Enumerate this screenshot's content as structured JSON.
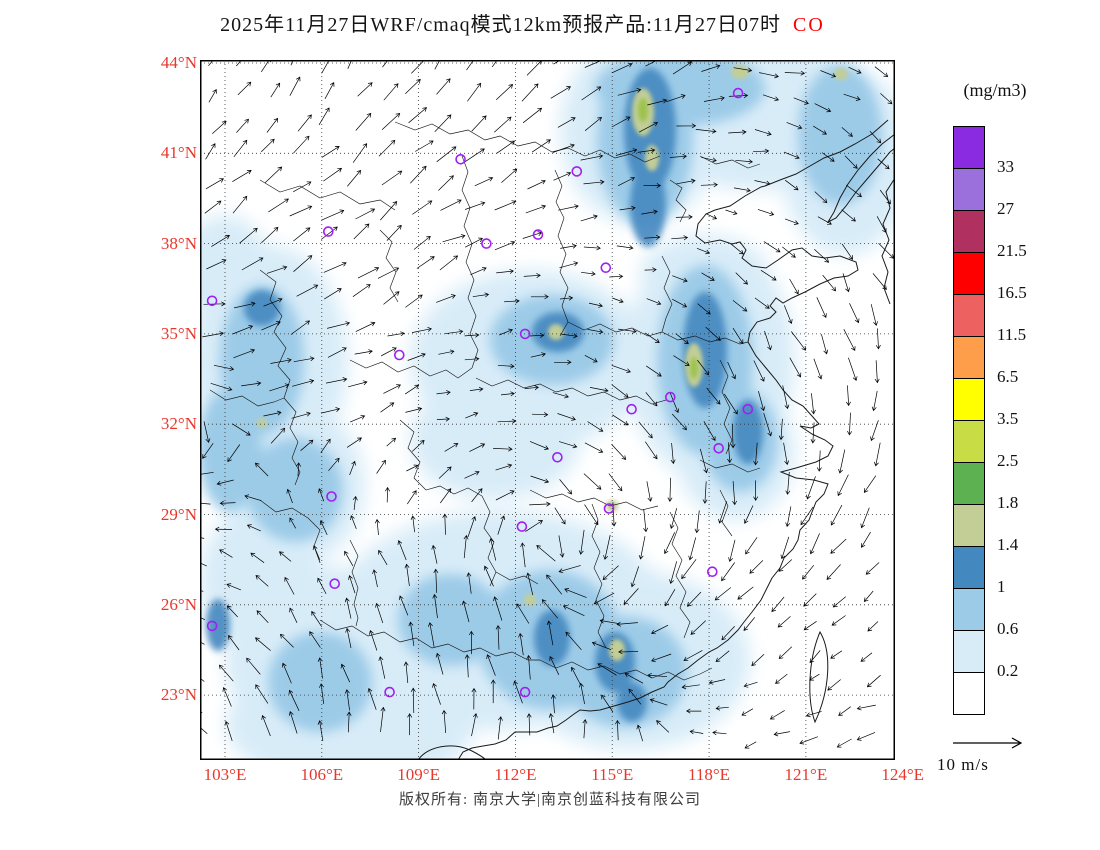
{
  "title": {
    "main": "2025年11月27日WRF/cmaq模式12km预报产品:11月27日07时",
    "species": "CO"
  },
  "footer": "版权所有: 南京大学|南京创蓝科技有限公司",
  "colors": {
    "axis_labels": "#e8382c",
    "species_label": "#ff0000",
    "station_marker": "#a020f0",
    "coastline": "#1a1a1a"
  },
  "map": {
    "lat_ticks": [
      {
        "label": "44°N",
        "deg": 44
      },
      {
        "label": "41°N",
        "deg": 41
      },
      {
        "label": "38°N",
        "deg": 38
      },
      {
        "label": "35°N",
        "deg": 35
      },
      {
        "label": "32°N",
        "deg": 32
      },
      {
        "label": "29°N",
        "deg": 29
      },
      {
        "label": "26°N",
        "deg": 26
      },
      {
        "label": "23°N",
        "deg": 23
      }
    ],
    "lon_ticks": [
      {
        "label": "103°E",
        "deg": 103
      },
      {
        "label": "106°E",
        "deg": 106
      },
      {
        "label": "109°E",
        "deg": 109
      },
      {
        "label": "112°E",
        "deg": 112
      },
      {
        "label": "115°E",
        "deg": 115
      },
      {
        "label": "118°E",
        "deg": 118
      },
      {
        "label": "121°E",
        "deg": 121
      },
      {
        "label": "124°E",
        "deg": 124
      }
    ]
  },
  "legend": {
    "units": "(mg/m3)",
    "levels": [
      "33",
      "27",
      "21.5",
      "16.5",
      "11.5",
      "6.5",
      "3.5",
      "2.5",
      "1.8",
      "1.4",
      "1",
      "0.6",
      "0.2"
    ],
    "colors_top_to_bottom": [
      "#8a2be2",
      "#9b6fdc",
      "#b03060",
      "#ff0000",
      "#ee6161",
      "#ff9e4a",
      "#ffff00",
      "#c8dc46",
      "#5eb150",
      "#c2ce96",
      "#4488c0",
      "#9ccbe8",
      "#d8ecf8",
      "#ffffff"
    ]
  },
  "wind_scale": {
    "label": "10 m/s"
  },
  "chart_data": {
    "type": "heatmap",
    "title": "2025年11月27日WRF/cmaq模式12km预报产品:11月27日07时 CO",
    "variable": "CO",
    "units": "mg/m3",
    "x_axis": {
      "name": "longitude",
      "ticks": [
        103,
        106,
        109,
        112,
        115,
        118,
        121,
        124
      ],
      "tick_labels": [
        "103°E",
        "106°E",
        "109°E",
        "112°E",
        "115°E",
        "118°E",
        "121°E",
        "124°E"
      ],
      "range": [
        102.2,
        123.8
      ]
    },
    "y_axis": {
      "name": "latitude",
      "ticks": [
        44,
        41,
        38,
        35,
        32,
        29,
        26,
        23
      ],
      "tick_labels": [
        "44°N",
        "41°N",
        "38°N",
        "35°N",
        "32°N",
        "29°N",
        "26°N",
        "23°N"
      ],
      "range": [
        20.8,
        44.1
      ]
    },
    "colorbar_levels": [
      0.2,
      0.6,
      1,
      1.4,
      1.8,
      2.5,
      3.5,
      6.5,
      11.5,
      16.5,
      21.5,
      27,
      33
    ],
    "colorbar_colors_low_to_high": [
      "#ffffff",
      "#d8ecf8",
      "#9ccbe8",
      "#4488c0",
      "#c2ce96",
      "#5eb150",
      "#c8dc46",
      "#ffff00",
      "#ff9e4a",
      "#ee6161",
      "#ff0000",
      "#b03060",
      "#9b6fdc",
      "#8a2be2"
    ],
    "wind_reference": "10 m/s",
    "stations": [
      [
        110.3,
        40.8
      ],
      [
        113.9,
        40.4
      ],
      [
        118.9,
        43.0
      ],
      [
        106.2,
        38.4
      ],
      [
        112.7,
        38.3
      ],
      [
        111.1,
        38.0
      ],
      [
        114.8,
        37.2
      ],
      [
        102.6,
        36.1
      ],
      [
        112.3,
        35.0
      ],
      [
        108.4,
        34.3
      ],
      [
        116.8,
        32.9
      ],
      [
        115.6,
        32.5
      ],
      [
        119.2,
        32.5
      ],
      [
        118.3,
        31.2
      ],
      [
        113.3,
        30.9
      ],
      [
        106.3,
        29.6
      ],
      [
        114.9,
        29.2
      ],
      [
        112.2,
        28.6
      ],
      [
        118.1,
        27.1
      ],
      [
        106.4,
        26.7
      ],
      [
        102.6,
        25.3
      ],
      [
        108.1,
        23.1
      ],
      [
        112.3,
        23.1
      ]
    ],
    "notes": "Filled CO contours with wind vectors over eastern China; plume maxima (1-2.5 mg/m3, blue to olive) over the Beijing-Hebei corridor, the Jiangsu-Anhui coast and south-central China; most shaded regions 0.2-1 mg/m3."
  }
}
